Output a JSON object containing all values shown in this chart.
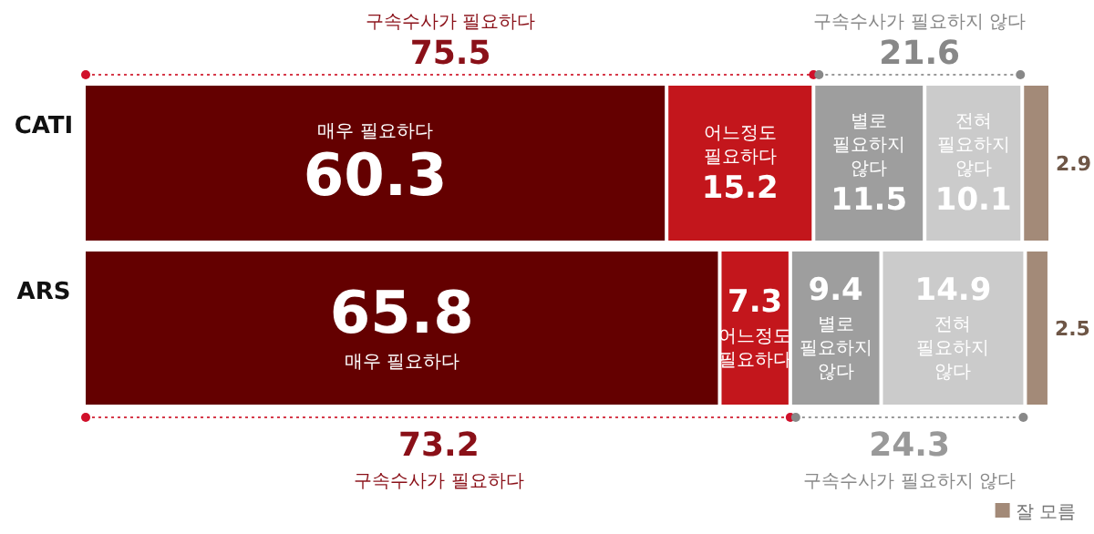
{
  "chart_data": {
    "type": "bar",
    "orientation": "horizontal",
    "stacked": true,
    "data_labels": true,
    "legend": "bottom right",
    "tick_labels": "y",
    "xlim": [
      0,
      100
    ],
    "categories": [
      "CATI",
      "ARS"
    ],
    "series": [
      {
        "name": "매우 필요하다",
        "color": "#640000",
        "values": [
          60.3,
          65.8
        ]
      },
      {
        "name": "어느정도 필요하다",
        "color": "#c3161c",
        "values": [
          15.2,
          7.3
        ]
      },
      {
        "name": "별로 필요하지 않다",
        "color": "#9e9e9e",
        "values": [
          11.5,
          9.4
        ]
      },
      {
        "name": "전혀 필요하지 않다",
        "color": "#cbcbcb",
        "values": [
          10.1,
          14.9
        ]
      },
      {
        "name": "잘 모름",
        "color": "#a38a78",
        "values": [
          2.9,
          2.5
        ]
      }
    ],
    "annotations": [
      "구속수사가 필요하다",
      "75.5",
      "구속수사가 필요하지 않다",
      "21.6",
      "73.2",
      "구속수사가 필요하다",
      "24.3",
      "구속수사가 필요하지 않다"
    ]
  }
}
